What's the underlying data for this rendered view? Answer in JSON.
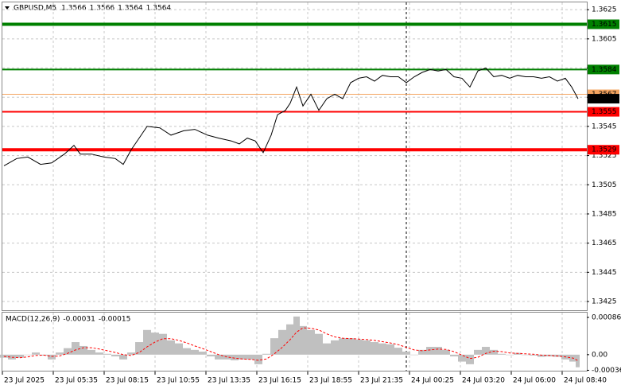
{
  "chart_data": [
    {
      "type": "line",
      "symbol": "GBPUSD,M5",
      "ohlc": [
        1.3566,
        1.3566,
        1.3564,
        1.3564
      ],
      "x": [
        1,
        9,
        16,
        24,
        31,
        39,
        45,
        49,
        56,
        64,
        71,
        76,
        81,
        86,
        91,
        99,
        106,
        114,
        121,
        129,
        136,
        144,
        149,
        154,
        159,
        164,
        169,
        173,
        178,
        181,
        185,
        189,
        194,
        199,
        204,
        209,
        214,
        219,
        224,
        229,
        234,
        239,
        244,
        249,
        254,
        259,
        264,
        269,
        274,
        279,
        284,
        289,
        294,
        299,
        304,
        309,
        314,
        319,
        324,
        329,
        334,
        339,
        344,
        349,
        354,
        358,
        362
      ],
      "series": [
        {
          "color": "#000000",
          "values": [
            1.3518,
            1.3523,
            1.3524,
            1.3519,
            1.352,
            1.3526,
            1.3532,
            1.3526,
            1.3526,
            1.3524,
            1.3523,
            1.3519,
            1.3529,
            1.3537,
            1.3545,
            1.3544,
            1.3539,
            1.3542,
            1.3543,
            1.3539,
            1.3537,
            1.3535,
            1.3533,
            1.3537,
            1.3535,
            1.3527,
            1.3539,
            1.3553,
            1.3556,
            1.3561,
            1.3572,
            1.3559,
            1.3567,
            1.3556,
            1.3564,
            1.3567,
            1.3564,
            1.3575,
            1.3578,
            1.3579,
            1.3576,
            1.358,
            1.3579,
            1.3579,
            1.3575,
            1.3579,
            1.3582,
            1.3584,
            1.3583,
            1.3584,
            1.3579,
            1.3578,
            1.3572,
            1.3583,
            1.3585,
            1.3579,
            1.358,
            1.3578,
            1.358,
            1.3579,
            1.3579,
            1.3578,
            1.3579,
            1.3576,
            1.3578,
            1.3572,
            1.3564
          ]
        }
      ],
      "xlim": [
        0,
        367.5
      ],
      "xticks": [
        {
          "value": 0,
          "label": "23 Jul 2025"
        },
        {
          "value": 32,
          "label": "23 Jul 05:35"
        },
        {
          "value": 64,
          "label": "23 Jul 08:15"
        },
        {
          "value": 96,
          "label": "23 Jul 10:55"
        },
        {
          "value": 128,
          "label": "23 Jul 13:35"
        },
        {
          "value": 160,
          "label": "23 Jul 16:15"
        },
        {
          "value": 192,
          "label": "23 Jul 18:55"
        },
        {
          "value": 224,
          "label": "23 Jul 21:35"
        },
        {
          "value": 256,
          "label": "24 Jul 00:25"
        },
        {
          "value": 288,
          "label": "24 Jul 03:20"
        },
        {
          "value": 320,
          "label": "24 Jul 06:00"
        },
        {
          "value": 352,
          "label": "24 Jul 08:40"
        }
      ],
      "ylim": [
        1.3419,
        1.363
      ],
      "yticks": [
        1.3625,
        1.3605,
        1.3585,
        1.3565,
        1.3545,
        1.3525,
        1.3505,
        1.3485,
        1.3465,
        1.3445,
        1.3425
      ],
      "grid": true,
      "cursor_x": 254,
      "levels": [
        {
          "value": 1.3615,
          "color": "#008000",
          "width": 4
        },
        {
          "value": 1.3584,
          "color": "#008000",
          "width": 2
        },
        {
          "value": 1.3567,
          "color": "#f4a460",
          "width": 1
        },
        {
          "value": 1.3555,
          "color": "#ff0000",
          "width": 2
        },
        {
          "value": 1.3529,
          "color": "#ff0000",
          "width": 4
        }
      ],
      "last_price": 1.3564
    },
    {
      "type": "macd",
      "title": "MACD(12,26,9)",
      "readings": [
        -0.00031,
        -0.00015
      ],
      "x": [
        1,
        6,
        11,
        16,
        21,
        26,
        31,
        36,
        41,
        46,
        51,
        56,
        61,
        66,
        71,
        76,
        81,
        86,
        91,
        96,
        101,
        106,
        111,
        116,
        121,
        126,
        131,
        136,
        141,
        146,
        151,
        156,
        161,
        166,
        171,
        176,
        181,
        185,
        189,
        194,
        199,
        204,
        209,
        214,
        219,
        224,
        229,
        234,
        239,
        244,
        249,
        254,
        259,
        264,
        269,
        274,
        279,
        284,
        289,
        294,
        299,
        304,
        309,
        314,
        319,
        324,
        329,
        334,
        339,
        344,
        349,
        354,
        359,
        362
      ],
      "series": [
        {
          "color": "#c0c0c0",
          "values": [
            -7e-05,
            -0.00011,
            -7e-05,
            0,
            5e-05,
            -2e-05,
            -0.00011,
            5e-05,
            0.00015,
            0.00029,
            0.0002,
            0.00011,
            5e-05,
            2e-05,
            -4e-05,
            -0.00011,
            5e-05,
            0.00029,
            0.00057,
            0.00051,
            0.00048,
            0.00033,
            0.00026,
            0.00015,
            0.00011,
            7e-05,
            -4e-05,
            -0.00011,
            -0.00011,
            -0.00013,
            -0.00011,
            -0.00011,
            -0.00022,
            2e-05,
            0.00038,
            0.00057,
            0.0007,
            0.00088,
            0.00066,
            0.00057,
            0.00048,
            0.00026,
            0.00033,
            0.00038,
            0.00038,
            0.00035,
            0.00033,
            0.00029,
            0.00026,
            0.00024,
            0.00016,
            7e-05,
            0,
            0.00011,
            0.00018,
            0.00018,
            0.00011,
            -4e-05,
            -0.00016,
            -0.00022,
            0.00011,
            0.00018,
            0.00011,
            2e-05,
            0,
            4e-05,
            0,
            -2e-05,
            -5e-05,
            -4e-05,
            -5e-05,
            -0.00011,
            -0.00016,
            -0.00029
          ]
        },
        {
          "color": "#ff0000",
          "values": [
            -4e-05,
            -6e-05,
            -7e-05,
            -5e-05,
            -2e-05,
            -1e-05,
            -4e-05,
            -3e-05,
            3e-05,
            0.00011,
            0.00016,
            0.00016,
            0.00013,
            9e-05,
            5e-05,
            0,
            -2e-05,
            5e-05,
            0.00018,
            0.00029,
            0.00037,
            0.00037,
            0.00033,
            0.00027,
            0.0002,
            0.00014,
            7e-05,
            0,
            -5e-05,
            -8e-05,
            -0.0001,
            -0.00011,
            -0.00013,
            -0.0001,
            2e-05,
            0.00017,
            0.00035,
            0.00052,
            0.00062,
            0.00061,
            0.00057,
            0.00048,
            0.00041,
            0.00038,
            0.00037,
            0.00036,
            0.00035,
            0.00033,
            0.0003,
            0.00027,
            0.00023,
            0.00017,
            0.00011,
            9e-05,
            0.00011,
            0.00013,
            0.00012,
            7e-05,
            -1e-05,
            -9e-05,
            -6e-05,
            3e-05,
            8e-05,
            7e-05,
            4e-05,
            3e-05,
            2e-05,
            1e-05,
            -1e-05,
            -2e-05,
            -3e-05,
            -5e-05,
            -8e-05,
            -0.00014
          ]
        }
      ],
      "xlim": [
        0,
        367.5
      ],
      "ylim": [
        -0.00037,
        0.00097
      ],
      "yticks": [
        0.00086,
        {
          "value": 0,
          "label": "0.00"
        },
        -0.00036
      ]
    }
  ]
}
